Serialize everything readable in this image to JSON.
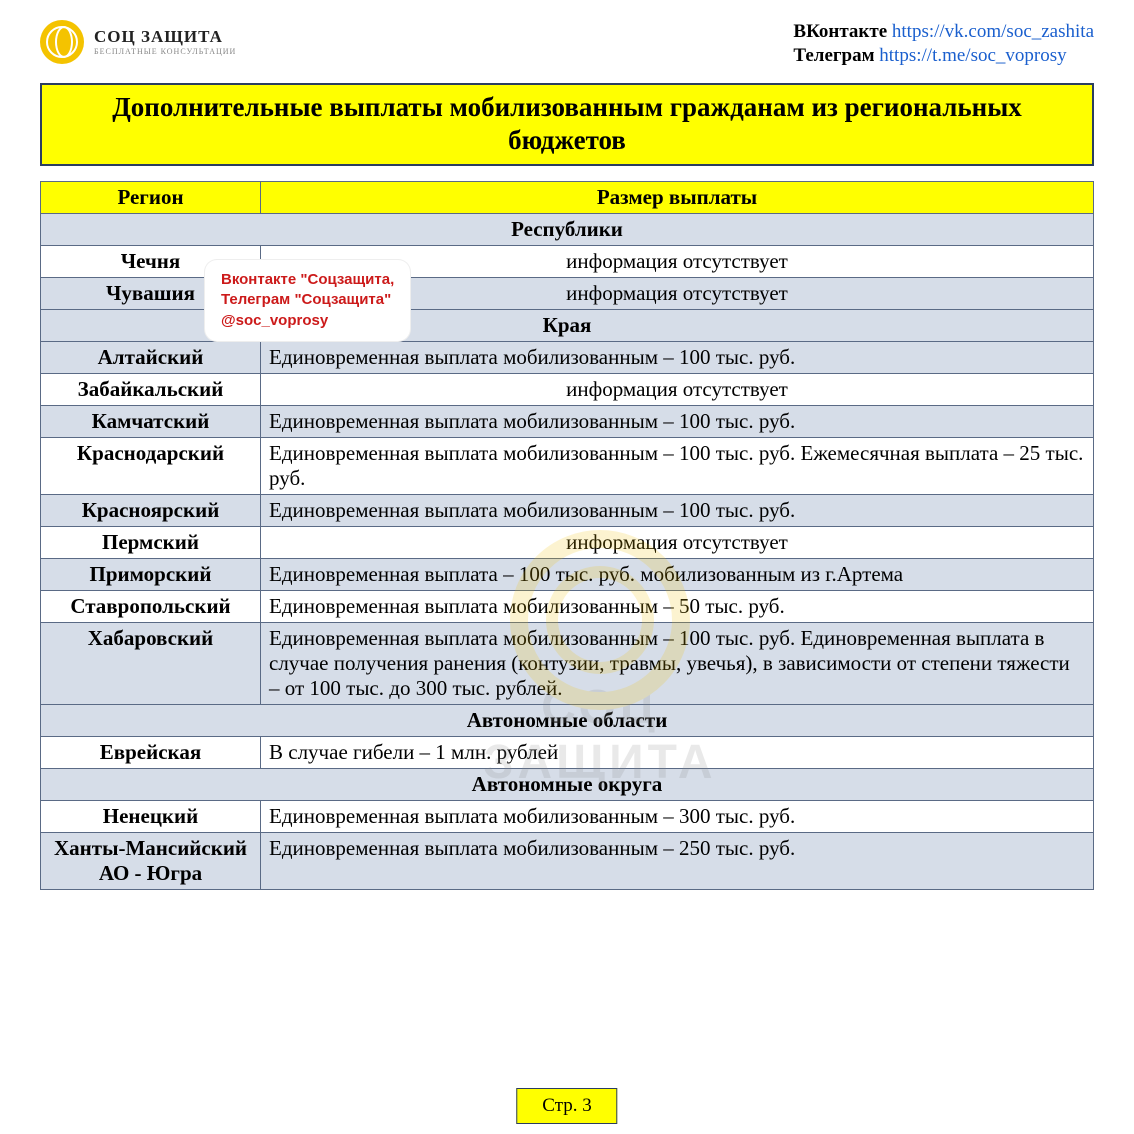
{
  "logo": {
    "line1": "СОЦ",
    "line2": "ЗАЩИТА",
    "sub": "БЕСПЛАТНЫЕ КОНСУЛЬТАЦИИ"
  },
  "social": {
    "vk_label": "ВКонтакте",
    "vk_url": "https://vk.com/soc_zashita",
    "tg_label": "Телеграм",
    "tg_url": "https://t.me/soc_voprosy"
  },
  "title": "Дополнительные выплаты мобилизованным гражданам из региональных бюджетов",
  "columns": {
    "region": "Регион",
    "payment": "Размер выплаты"
  },
  "sections": {
    "republics": "Республики",
    "krai": "Края",
    "ao": "Автономные области",
    "aok": "Автономные округа"
  },
  "rows": {
    "chechnya": {
      "region": "Чечня",
      "payment": "информация отсутствует",
      "center": true
    },
    "chuvashia": {
      "region": "Чувашия",
      "payment": "информация отсутствует",
      "center": true
    },
    "altai": {
      "region": "Алтайский",
      "payment": "Единовременная выплата мобилизованным – 100 тыс. руб."
    },
    "zabaikal": {
      "region": "Забайкальский",
      "payment": "информация отсутствует",
      "center": true
    },
    "kamchatka": {
      "region": "Камчатский",
      "payment": "Единовременная выплата мобилизованным – 100 тыс. руб."
    },
    "krasnodar": {
      "region": "Краснодарский",
      "payment": "Единовременная выплата мобилизованным – 100 тыс. руб. Ежемесячная выплата – 25 тыс. руб."
    },
    "krasnoyarsk": {
      "region": "Красноярский",
      "payment": "Единовременная выплата мобилизованным – 100 тыс. руб."
    },
    "perm": {
      "region": "Пермский",
      "payment": "информация отсутствует",
      "center": true
    },
    "primorsky": {
      "region": "Приморский",
      "payment": "Единовременная выплата – 100 тыс. руб. мобилизованным из г.Артема"
    },
    "stavropol": {
      "region": "Ставропольский",
      "payment": "Единовременная выплата мобилизованным – 50 тыс. руб."
    },
    "khabarovsk": {
      "region": "Хабаровский",
      "payment": "Единовременная выплата мобилизованным – 100 тыс. руб. Единовременная выплата в случае получения ранения (контузии, травмы, увечья), в зависимости от степени тяжести – от 100 тыс. до 300 тыс. рублей."
    },
    "evreyskaya": {
      "region": "Еврейская",
      "payment": "В случае гибели – 1 млн. рублей"
    },
    "nenets": {
      "region": "Ненецкий",
      "payment": "Единовременная выплата мобилизованным – 300 тыс. руб."
    },
    "khanty": {
      "region": "Ханты-Мансийский АО - Югра",
      "payment": "Единовременная выплата мобилизованным – 250 тыс. руб."
    }
  },
  "watermark_box": {
    "l1": "Вконтакте \"Соцзащита,",
    "l2": "Телеграм \"Соцзащита\"",
    "l3": "@soc_voprosy"
  },
  "watermark_logo": {
    "l1": "СОЦ",
    "l2": "ЗАЩИТА"
  },
  "page_label": "Стр. 3",
  "colors": {
    "yellow": "#ffff00",
    "border": "#2b3e60",
    "row_alt": "#d6dde8",
    "link": "#1a5fce",
    "brand": "#f4c300",
    "wm_red": "#cc1a1a"
  }
}
